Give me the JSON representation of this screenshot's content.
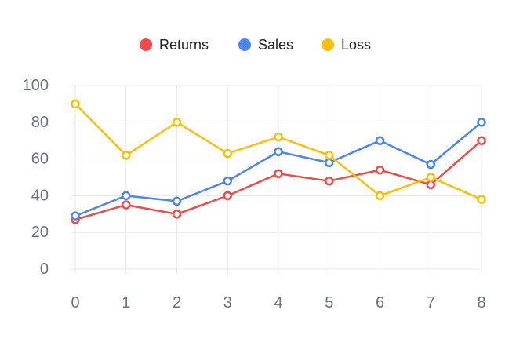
{
  "chart_data": {
    "type": "line",
    "title": "",
    "xlabel": "",
    "ylabel": "",
    "x": [
      0,
      1,
      2,
      3,
      4,
      5,
      6,
      7,
      8
    ],
    "ylim": [
      0,
      100
    ],
    "y_ticks": [
      0,
      20,
      40,
      60,
      80,
      100
    ],
    "grid": true,
    "legend_position": "top-center",
    "series": [
      {
        "name": "Returns",
        "color": "#f04a4a",
        "values": [
          27,
          35,
          30,
          40,
          52,
          48,
          54,
          46,
          70
        ]
      },
      {
        "name": "Sales",
        "color": "#4b84f5",
        "values": [
          29,
          40,
          37,
          48,
          64,
          58,
          70,
          57,
          80
        ]
      },
      {
        "name": "Loss",
        "color": "#fbbf09",
        "values": [
          90,
          62,
          80,
          63,
          72,
          62,
          40,
          50,
          38
        ]
      }
    ]
  }
}
